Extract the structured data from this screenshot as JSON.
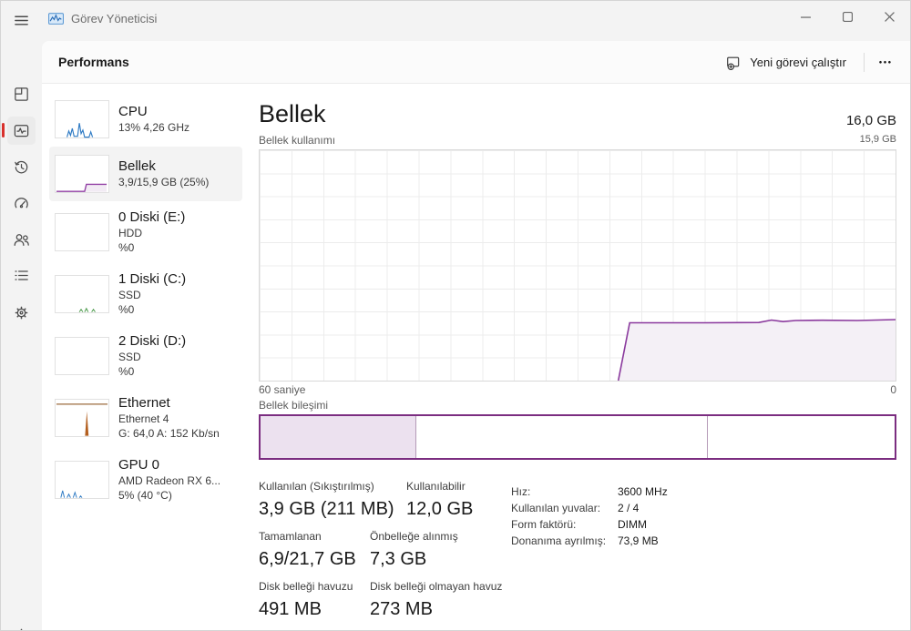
{
  "window": {
    "title": "Görev Yöneticisi"
  },
  "header": {
    "title": "Performans",
    "run_task_label": "Yeni görevi çalıştır",
    "more_label": "●●●"
  },
  "icons": {
    "titlebar": [
      "hamburger-menu-icon",
      "task-manager-app-icon",
      "minimize-icon",
      "maximize-icon",
      "close-icon"
    ],
    "nav_rail": [
      "processes-icon",
      "performance-icon",
      "app-history-icon",
      "startup-apps-icon",
      "users-icon",
      "details-icon",
      "services-icon",
      "settings-gear-icon"
    ],
    "header": [
      "run-new-task-icon",
      "ellipsis-icon"
    ]
  },
  "colors": {
    "accent_red": "#d8302c",
    "memory_purple": "#8a399d",
    "memory_fill": "#f4f0f6",
    "composition_border": "#7b2d80",
    "composition_used_fill": "#ece1ef",
    "cpu_blue": "#2f7bc4",
    "disk_green": "#4a9a4a",
    "ethernet_brown": "#b35f1f",
    "titlebar_bg": "#f3f3f3",
    "card_bg": "#ffffff"
  },
  "devices": [
    {
      "id": "cpu",
      "title": "CPU",
      "lines": [
        "13%  4,26 GHz"
      ],
      "selected": false
    },
    {
      "id": "memory",
      "title": "Bellek",
      "lines": [
        "3,9/15,9 GB (25%)"
      ],
      "selected": true
    },
    {
      "id": "disk0",
      "title": "0 Diski (E:)",
      "lines": [
        "HDD",
        "%0"
      ],
      "selected": false
    },
    {
      "id": "disk1",
      "title": "1 Diski (C:)",
      "lines": [
        "SSD",
        "%0"
      ],
      "selected": false
    },
    {
      "id": "disk2",
      "title": "2 Diski (D:)",
      "lines": [
        "SSD",
        "%0"
      ],
      "selected": false
    },
    {
      "id": "ethernet",
      "title": "Ethernet",
      "lines": [
        "Ethernet 4",
        "G: 64,0 A: 152 Kb/sn"
      ],
      "selected": false
    },
    {
      "id": "gpu",
      "title": "GPU 0",
      "lines": [
        "AMD Radeon RX 6...",
        "5%  (40 °C)"
      ],
      "selected": false
    }
  ],
  "memory": {
    "title": "Bellek",
    "total": "16,0 GB",
    "usage_label": "Bellek kullanımı",
    "scale_max": "15,9 GB",
    "time_span": "60 saniye",
    "time_end": "0",
    "composition_label": "Bellek bileşimi",
    "composition": {
      "segments_pct": [
        24.6,
        45.9,
        29.5
      ],
      "filled_segment": 0
    },
    "stats": [
      [
        {
          "label": "Kullanılan (Sıkıştırılmış)",
          "value": "3,9 GB (211 MB)"
        },
        {
          "label": "Kullanılabilir",
          "value": "12,0 GB"
        }
      ],
      [
        {
          "label": "Tamamlanan",
          "value": "6,9/21,7 GB"
        },
        {
          "label": "Önbelleğe alınmış",
          "value": "7,3 GB"
        }
      ],
      [
        {
          "label": "Disk belleği havuzu",
          "value": "491 MB"
        },
        {
          "label": "Disk belleği olmayan havuz",
          "value": "273 MB"
        }
      ]
    ],
    "info": [
      {
        "label": "Hız:",
        "value": "3600 MHz"
      },
      {
        "label": "Kullanılan yuvalar:",
        "value": "2 / 4"
      },
      {
        "label": "Form faktörü:",
        "value": "DIMM"
      },
      {
        "label": "Donanıma ayrılmış:",
        "value": "73,9 MB"
      }
    ]
  },
  "chart_data": {
    "type": "area",
    "title": "Bellek kullanımı",
    "xlabel_left": "60 saniye",
    "xlabel_right": "0",
    "x_range_seconds": 60,
    "y_max_label": "15,9 GB",
    "y_range_gb": 15.9,
    "used_gb": 3.9,
    "used_pct": 25,
    "grid": {
      "cols": 20,
      "rows": 10,
      "on": true
    },
    "legend": "none",
    "series": [
      {
        "name": "Bellek kullanımı",
        "points_pct": [
          [
            56.4,
            0
          ],
          [
            58.2,
            25.1
          ],
          [
            70,
            25.1
          ],
          [
            78.5,
            25.2
          ],
          [
            80.5,
            26.3
          ],
          [
            82.3,
            25.6
          ],
          [
            84.3,
            26.1
          ],
          [
            88.5,
            26.2
          ],
          [
            94,
            26.1
          ],
          [
            100,
            26.5
          ]
        ]
      }
    ]
  }
}
